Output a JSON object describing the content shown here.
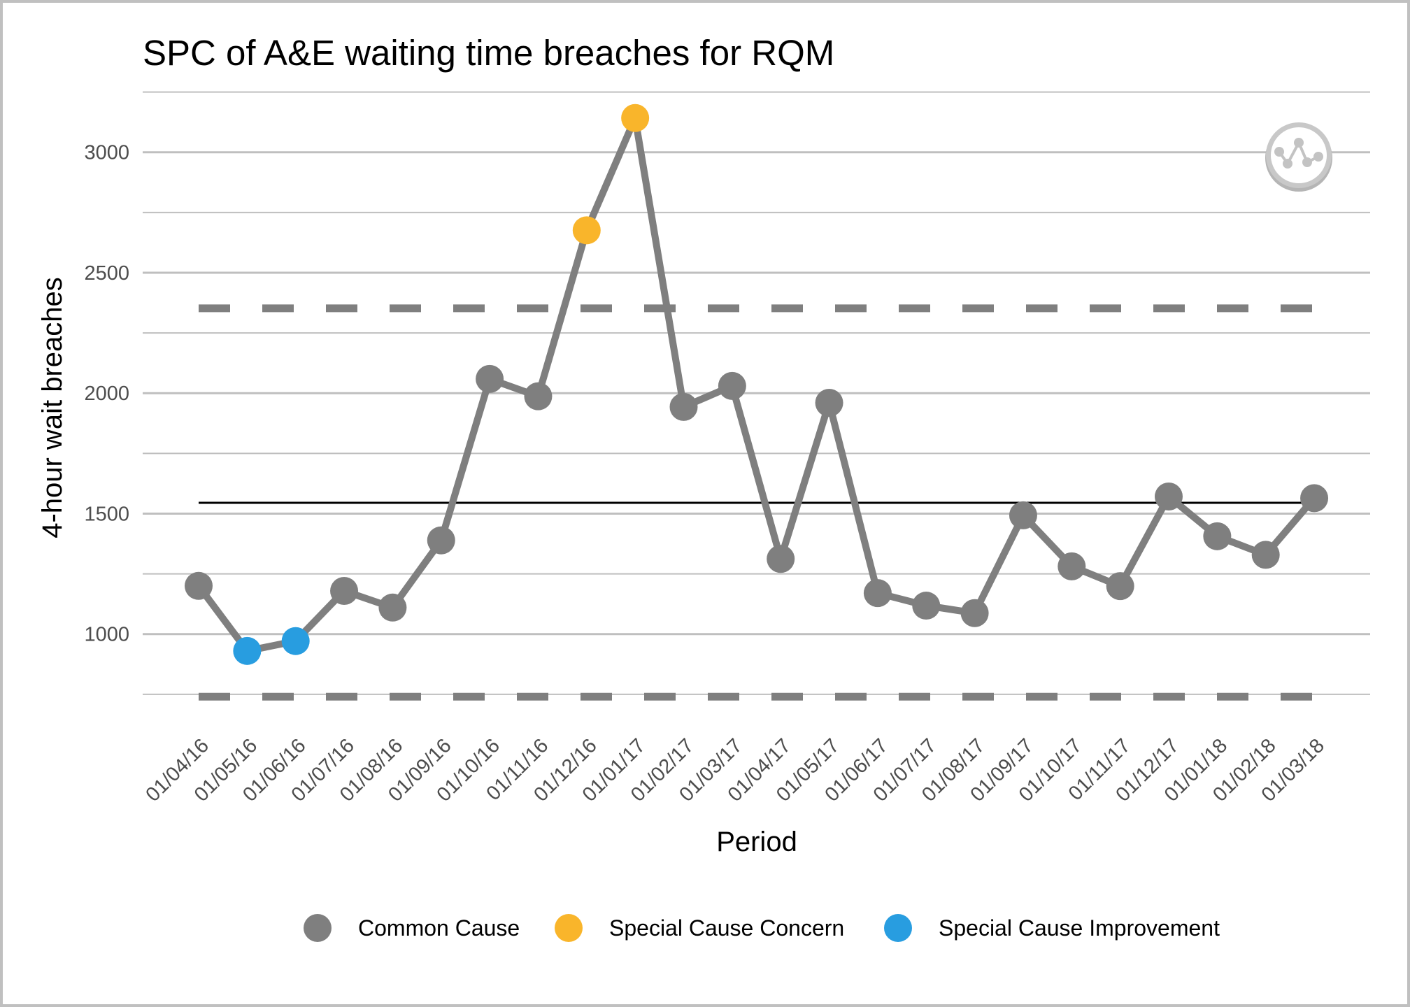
{
  "chart_data": {
    "type": "line",
    "title": "SPC of A&E waiting time breaches for RQM",
    "xlabel": "Period",
    "ylabel": "4-hour wait breaches",
    "ylim": [
      740,
      3260
    ],
    "yticks": [
      1000,
      1500,
      2000,
      2500,
      3000
    ],
    "ytick_labels": [
      "1000",
      "1500",
      "2000",
      "2500",
      "3000"
    ],
    "minor_gridlines": [
      750,
      1250,
      1750,
      2250,
      2750,
      3250
    ],
    "grid": true,
    "categories": [
      "01/04/16",
      "01/05/16",
      "01/06/16",
      "01/07/16",
      "01/08/16",
      "01/09/16",
      "01/10/16",
      "01/11/16",
      "01/12/16",
      "01/01/17",
      "01/02/17",
      "01/03/17",
      "01/04/17",
      "01/05/17",
      "01/06/17",
      "01/07/17",
      "01/08/17",
      "01/09/17",
      "01/10/17",
      "01/11/17",
      "01/12/17",
      "01/01/18",
      "01/02/18",
      "01/03/18"
    ],
    "series": [
      {
        "name": "4-hour wait breaches",
        "values": [
          1200,
          930,
          971,
          1179,
          1110,
          1389,
          2059,
          1987,
          2676,
          3142,
          1943,
          2030,
          1312,
          1960,
          1170,
          1118,
          1087,
          1493,
          1281,
          1199,
          1571,
          1406,
          1329,
          1564
        ],
        "point_class": [
          "common",
          "improvement",
          "improvement",
          "common",
          "common",
          "common",
          "common",
          "common",
          "concern",
          "concern",
          "common",
          "common",
          "common",
          "common",
          "common",
          "common",
          "common",
          "common",
          "common",
          "common",
          "common",
          "common",
          "common",
          "common"
        ]
      }
    ],
    "mean": 1545,
    "upper_control_limit": 2352,
    "lower_control_limit": 740,
    "legend": {
      "position": "bottom",
      "entries": [
        {
          "key": "common",
          "label": "Common Cause",
          "color": "#7f7f7f"
        },
        {
          "key": "concern",
          "label": "Special Cause Concern",
          "color": "#f9b52b"
        },
        {
          "key": "improvement",
          "label": "Special Cause Improvement",
          "color": "#289de0"
        }
      ]
    },
    "colors": {
      "line": "#7f7f7f",
      "mean_line": "#000000",
      "control_limits": "#7f7f7f",
      "grid": "#bfbfbf"
    },
    "logo_icon": "spc-chart-badge-icon"
  }
}
